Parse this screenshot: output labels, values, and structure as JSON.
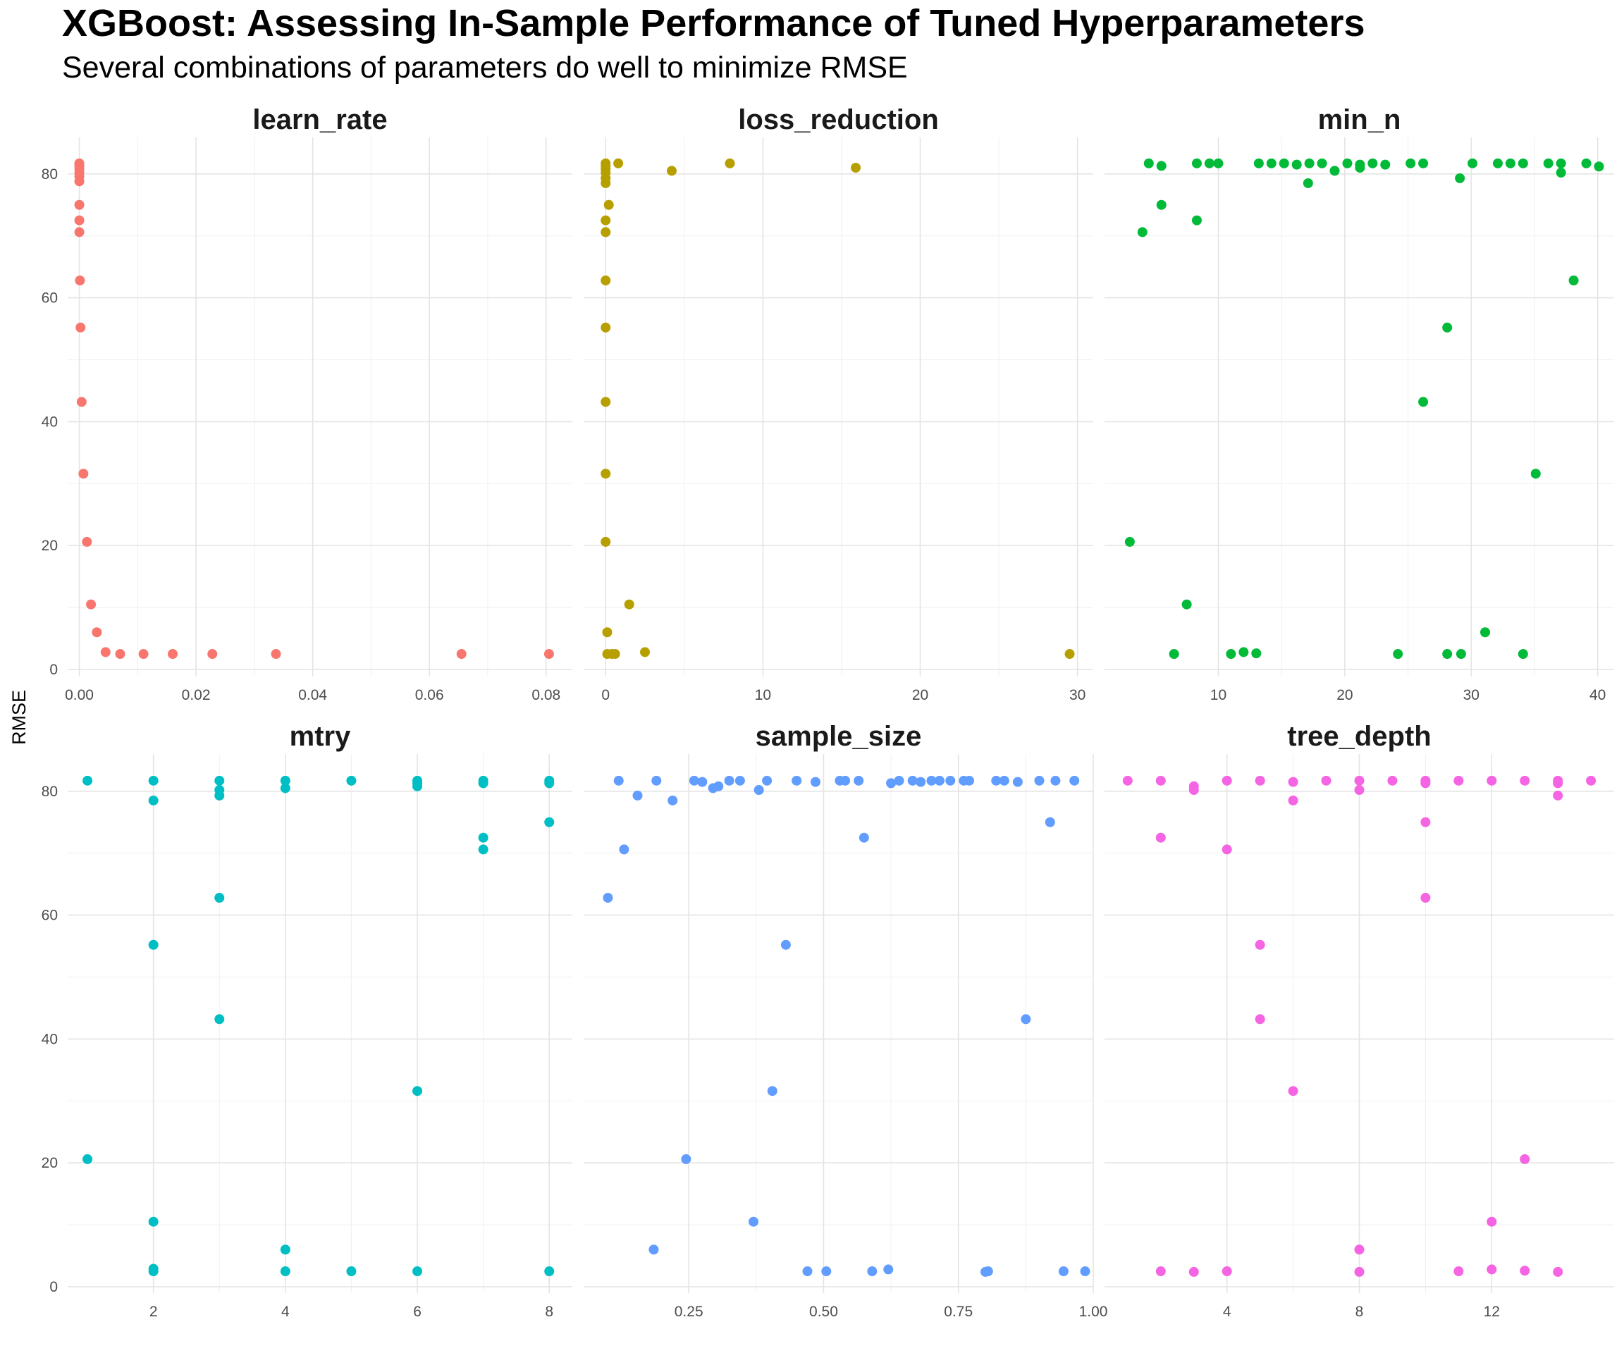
{
  "title": "XGBoost: Assessing In-Sample Performance of Tuned Hyperparameters",
  "subtitle": "Several combinations of parameters do well to minimize RMSE",
  "chart_data": {
    "type": "scatter",
    "ylabel": "RMSE",
    "ylim": [
      0,
      85
    ],
    "yticks": [
      0,
      20,
      40,
      60,
      80
    ],
    "grid": true,
    "legend": "none",
    "facets": [
      {
        "name": "learn_rate",
        "color": "#F8766D",
        "xlim": [
          -0.002,
          0.0845
        ],
        "xticks": [
          0.0,
          0.02,
          0.04,
          0.06,
          0.08
        ],
        "xtick_labels": [
          "0.00",
          "0.02",
          "0.04",
          "0.06",
          "0.08"
        ],
        "points": [
          [
            0.0,
            81.7
          ],
          [
            0.0,
            81.5
          ],
          [
            0.0,
            81.2
          ],
          [
            0.0,
            80.8
          ],
          [
            0.0,
            80.2
          ],
          [
            0.0,
            79.6
          ],
          [
            0.0,
            78.8
          ],
          [
            0.0,
            75.0
          ],
          [
            0.0,
            72.5
          ],
          [
            0.0,
            70.6
          ],
          [
            0.0001,
            62.8
          ],
          [
            0.0002,
            55.2
          ],
          [
            0.0004,
            43.2
          ],
          [
            0.0007,
            31.6
          ],
          [
            0.0013,
            20.6
          ],
          [
            0.002,
            10.5
          ],
          [
            0.003,
            6.0
          ],
          [
            0.0045,
            2.8
          ],
          [
            0.007,
            2.5
          ],
          [
            0.011,
            2.5
          ],
          [
            0.016,
            2.5
          ],
          [
            0.0228,
            2.5
          ],
          [
            0.0337,
            2.5
          ],
          [
            0.0655,
            2.5
          ],
          [
            0.0805,
            2.5
          ]
        ]
      },
      {
        "name": "loss_reduction",
        "color": "#B79F00",
        "xlim": [
          -1.4,
          31.0
        ],
        "xticks": [
          0,
          10,
          20,
          30
        ],
        "xtick_labels": [
          "0",
          "10",
          "20",
          "30"
        ],
        "points": [
          [
            0.0,
            81.7
          ],
          [
            0.0,
            81.3
          ],
          [
            0.0,
            80.8
          ],
          [
            0.0,
            80.2
          ],
          [
            0.0,
            79.3
          ],
          [
            0.0,
            78.5
          ],
          [
            0.2,
            75.0
          ],
          [
            0.0,
            72.5
          ],
          [
            0.0,
            70.6
          ],
          [
            0.0,
            62.8
          ],
          [
            0.0,
            55.2
          ],
          [
            0.0,
            43.2
          ],
          [
            0.0,
            31.6
          ],
          [
            0.0,
            20.6
          ],
          [
            1.5,
            10.5
          ],
          [
            0.1,
            6.0
          ],
          [
            0.1,
            2.5
          ],
          [
            0.4,
            2.5
          ],
          [
            0.6,
            2.5
          ],
          [
            2.5,
            2.8
          ],
          [
            0.8,
            81.7
          ],
          [
            4.2,
            80.5
          ],
          [
            7.9,
            81.7
          ],
          [
            15.9,
            81.0
          ],
          [
            29.5,
            2.5
          ]
        ]
      },
      {
        "name": "min_n",
        "color": "#00BA38",
        "xlim": [
          1.0,
          41.3
        ],
        "xticks": [
          10,
          20,
          30,
          40
        ],
        "xtick_labels": [
          "10",
          "20",
          "30",
          "40"
        ],
        "points": [
          [
            3,
            20.6
          ],
          [
            4,
            70.6
          ],
          [
            4.5,
            81.7
          ],
          [
            5.5,
            81.3
          ],
          [
            5.5,
            75.0
          ],
          [
            6.5,
            2.5
          ],
          [
            7.5,
            10.5
          ],
          [
            8.3,
            81.7
          ],
          [
            8.3,
            72.5
          ],
          [
            9.3,
            81.7
          ],
          [
            10,
            81.7
          ],
          [
            11,
            2.5
          ],
          [
            12,
            2.8
          ],
          [
            13,
            2.6
          ],
          [
            13.2,
            81.7
          ],
          [
            14.2,
            81.7
          ],
          [
            15.2,
            81.7
          ],
          [
            16.2,
            81.5
          ],
          [
            17.2,
            81.7
          ],
          [
            17.1,
            78.5
          ],
          [
            18.2,
            81.7
          ],
          [
            19.2,
            80.5
          ],
          [
            20.2,
            81.7
          ],
          [
            21.2,
            81.5
          ],
          [
            21.2,
            81.0
          ],
          [
            22.2,
            81.7
          ],
          [
            23.2,
            81.5
          ],
          [
            24.2,
            2.5
          ],
          [
            25.2,
            81.7
          ],
          [
            26.2,
            81.7
          ],
          [
            26.2,
            43.2
          ],
          [
            28.1,
            55.2
          ],
          [
            28.1,
            2.5
          ],
          [
            29.1,
            79.3
          ],
          [
            29.2,
            2.5
          ],
          [
            30.1,
            81.7
          ],
          [
            31.1,
            6.0
          ],
          [
            32.1,
            81.7
          ],
          [
            33.1,
            81.7
          ],
          [
            34.1,
            81.7
          ],
          [
            34.1,
            2.5
          ],
          [
            35.1,
            31.6
          ],
          [
            36.1,
            81.7
          ],
          [
            37.1,
            81.7
          ],
          [
            37.1,
            80.2
          ],
          [
            38.1,
            62.8
          ],
          [
            39.1,
            81.7
          ],
          [
            40.1,
            81.2
          ]
        ]
      },
      {
        "name": "mtry",
        "color": "#00BFC4",
        "xlim": [
          0.7,
          8.35
        ],
        "xticks": [
          2,
          4,
          6,
          8
        ],
        "xtick_labels": [
          "2",
          "4",
          "6",
          "8"
        ],
        "points": [
          [
            1,
            81.7
          ],
          [
            1,
            20.6
          ],
          [
            2,
            81.7
          ],
          [
            2,
            78.5
          ],
          [
            2,
            55.2
          ],
          [
            2,
            10.5
          ],
          [
            2,
            2.9
          ],
          [
            2,
            2.5
          ],
          [
            3,
            81.7
          ],
          [
            3,
            80.2
          ],
          [
            3,
            79.3
          ],
          [
            3,
            62.8
          ],
          [
            3,
            43.2
          ],
          [
            4,
            81.7
          ],
          [
            4,
            80.5
          ],
          [
            4,
            6.0
          ],
          [
            4,
            2.5
          ],
          [
            5,
            81.7
          ],
          [
            5,
            2.5
          ],
          [
            6,
            81.7
          ],
          [
            6,
            81.3
          ],
          [
            6,
            80.8
          ],
          [
            6,
            31.6
          ],
          [
            6,
            2.5
          ],
          [
            7,
            81.7
          ],
          [
            7,
            81.3
          ],
          [
            7,
            72.5
          ],
          [
            7,
            70.6
          ],
          [
            8,
            81.7
          ],
          [
            8,
            81.3
          ],
          [
            8,
            75.0
          ],
          [
            8,
            2.5
          ]
        ]
      },
      {
        "name": "sample_size",
        "color": "#619CFF",
        "xlim": [
          0.055,
          1.0
        ],
        "xticks": [
          0.25,
          0.5,
          0.75,
          1.0
        ],
        "xtick_labels": [
          "0.25",
          "0.50",
          "0.75",
          "1.00"
        ],
        "points": [
          [
            0.1,
            62.8
          ],
          [
            0.12,
            81.7
          ],
          [
            0.13,
            70.6
          ],
          [
            0.155,
            79.3
          ],
          [
            0.185,
            6.0
          ],
          [
            0.19,
            81.7
          ],
          [
            0.22,
            78.5
          ],
          [
            0.245,
            20.6
          ],
          [
            0.26,
            81.7
          ],
          [
            0.275,
            81.5
          ],
          [
            0.295,
            80.5
          ],
          [
            0.305,
            80.8
          ],
          [
            0.325,
            81.7
          ],
          [
            0.345,
            81.7
          ],
          [
            0.37,
            10.5
          ],
          [
            0.38,
            80.2
          ],
          [
            0.395,
            81.7
          ],
          [
            0.405,
            31.6
          ],
          [
            0.43,
            55.2
          ],
          [
            0.45,
            81.7
          ],
          [
            0.47,
            2.5
          ],
          [
            0.485,
            81.5
          ],
          [
            0.505,
            2.5
          ],
          [
            0.53,
            81.7
          ],
          [
            0.54,
            81.7
          ],
          [
            0.565,
            81.7
          ],
          [
            0.575,
            72.5
          ],
          [
            0.59,
            2.5
          ],
          [
            0.62,
            2.8
          ],
          [
            0.625,
            81.3
          ],
          [
            0.64,
            81.7
          ],
          [
            0.665,
            81.7
          ],
          [
            0.68,
            81.5
          ],
          [
            0.7,
            81.7
          ],
          [
            0.715,
            81.7
          ],
          [
            0.735,
            81.7
          ],
          [
            0.76,
            81.7
          ],
          [
            0.77,
            81.7
          ],
          [
            0.8,
            2.4
          ],
          [
            0.805,
            2.5
          ],
          [
            0.82,
            81.7
          ],
          [
            0.835,
            81.7
          ],
          [
            0.86,
            81.5
          ],
          [
            0.875,
            43.2
          ],
          [
            0.9,
            81.7
          ],
          [
            0.92,
            75.0
          ],
          [
            0.93,
            81.7
          ],
          [
            0.945,
            2.5
          ],
          [
            0.965,
            81.7
          ],
          [
            0.985,
            2.5
          ]
        ]
      },
      {
        "name": "tree_depth",
        "color": "#F564E3",
        "xlim": [
          0.3,
          15.7
        ],
        "xticks": [
          4,
          8,
          12
        ],
        "xtick_labels": [
          "4",
          "8",
          "12"
        ],
        "points": [
          [
            1,
            81.7
          ],
          [
            2,
            81.7
          ],
          [
            2,
            72.5
          ],
          [
            2,
            2.5
          ],
          [
            3,
            80.8
          ],
          [
            3,
            80.2
          ],
          [
            3,
            2.4
          ],
          [
            4,
            81.7
          ],
          [
            4,
            70.6
          ],
          [
            4,
            2.5
          ],
          [
            5,
            81.7
          ],
          [
            5,
            55.2
          ],
          [
            5,
            43.2
          ],
          [
            6,
            81.5
          ],
          [
            6,
            78.5
          ],
          [
            6,
            31.6
          ],
          [
            7,
            81.7
          ],
          [
            8,
            81.7
          ],
          [
            8,
            80.2
          ],
          [
            8,
            6.0
          ],
          [
            8,
            2.4
          ],
          [
            9,
            81.7
          ],
          [
            10,
            81.7
          ],
          [
            10,
            81.3
          ],
          [
            10,
            75.0
          ],
          [
            10,
            62.8
          ],
          [
            11,
            81.7
          ],
          [
            11,
            2.5
          ],
          [
            12,
            81.7
          ],
          [
            12,
            10.5
          ],
          [
            12,
            2.8
          ],
          [
            13,
            81.7
          ],
          [
            13,
            20.6
          ],
          [
            13,
            2.6
          ],
          [
            14,
            81.7
          ],
          [
            14,
            81.3
          ],
          [
            14,
            79.3
          ],
          [
            14,
            2.4
          ],
          [
            15,
            81.7
          ]
        ]
      }
    ]
  }
}
